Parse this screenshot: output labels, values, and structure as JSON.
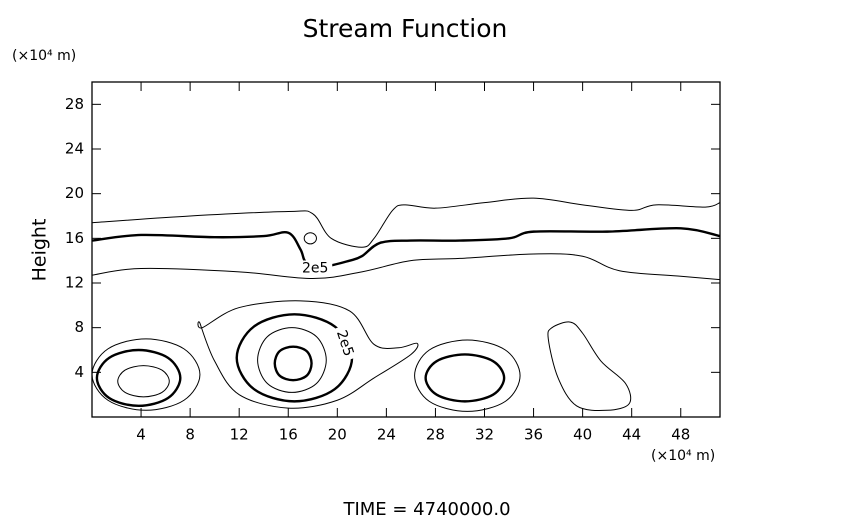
{
  "chart_data": {
    "type": "contour",
    "title": "Stream Function",
    "ylabel": "Height",
    "y_unit": "(×10⁴ m)",
    "x_unit": "(×10⁴ m)",
    "footer": "TIME = 4740000.0",
    "xlim": [
      0,
      51.2
    ],
    "ylim": [
      0,
      30
    ],
    "xticks": [
      4,
      8,
      12,
      16,
      20,
      24,
      28,
      32,
      36,
      40,
      44,
      48
    ],
    "yticks": [
      4,
      8,
      12,
      16,
      20,
      24,
      28
    ],
    "color": "#000000",
    "contours": [
      {
        "closed": false,
        "thick": false,
        "x": [
          0,
          8,
          16,
          18,
          19.5,
          22,
          23,
          24.5,
          25.5,
          28,
          32,
          36,
          40,
          44,
          46,
          50,
          51.2
        ],
        "y": [
          17.4,
          18,
          18.4,
          18.2,
          16,
          15.2,
          16,
          18.5,
          19,
          18.7,
          19.2,
          19.6,
          19,
          18.5,
          19,
          18.8,
          19.2
        ]
      },
      {
        "closed": false,
        "thick": true,
        "label": "2e5",
        "x": [
          0,
          4,
          10,
          14,
          16,
          17,
          17.5,
          19,
          21,
          22,
          23.5,
          26,
          30,
          34,
          36,
          42,
          48,
          51.2
        ],
        "y": [
          15.8,
          16.3,
          16.1,
          16.2,
          16.5,
          15,
          13.8,
          13.5,
          14,
          14.4,
          15.6,
          15.8,
          15.8,
          16,
          16.6,
          16.6,
          16.9,
          16.2
        ]
      },
      {
        "closed": false,
        "thick": false,
        "x": [
          0,
          4,
          12,
          18,
          22,
          26,
          30,
          36,
          40,
          43,
          48,
          51.2
        ],
        "y": [
          12.7,
          13.3,
          13,
          12.4,
          13,
          14,
          14.2,
          14.6,
          14.4,
          13.1,
          12.6,
          12.3
        ]
      },
      {
        "closed": true,
        "thick": false,
        "x": [
          18.3,
          18.15,
          17.8,
          17.45,
          17.3,
          17.45,
          17.8,
          18.15
        ],
        "y": [
          16,
          16.35,
          16.5,
          16.35,
          16,
          15.65,
          15.5,
          15.65
        ]
      },
      {
        "closed": true,
        "thick": false,
        "x": [
          8.8,
          7.5,
          4.4,
          1.3,
          0,
          1.3,
          4.4,
          7.5
        ],
        "y": [
          3.8,
          6.1,
          7.0,
          6.1,
          3.8,
          1.5,
          0.6,
          1.5
        ]
      },
      {
        "closed": true,
        "thick": true,
        "x": [
          7.2,
          6.2,
          3.8,
          1.4,
          0.4,
          1.4,
          3.8,
          6.2
        ],
        "y": [
          3.5,
          5.3,
          6.0,
          5.3,
          3.5,
          1.7,
          1.0,
          1.7
        ]
      },
      {
        "closed": true,
        "thick": false,
        "x": [
          6.3,
          5.7,
          4.2,
          2.7,
          2.1,
          2.7,
          4.2,
          5.7
        ],
        "y": [
          3.2,
          4.2,
          4.6,
          4.2,
          3.2,
          2.2,
          1.8,
          2.2
        ]
      },
      {
        "closed": true,
        "thick": false,
        "x": [
          9,
          12,
          17,
          21,
          23,
          25,
          26.5,
          26,
          23,
          20,
          16,
          12,
          10,
          8.8
        ],
        "y": [
          8,
          9.8,
          10.4,
          9.5,
          6.5,
          6.2,
          6.6,
          5.6,
          3.5,
          1.5,
          0.8,
          2,
          5,
          8.4
        ]
      },
      {
        "closed": true,
        "thick": true,
        "label": "2e5",
        "x": [
          21.2,
          19.8,
          16.5,
          13.2,
          11.8,
          13.2,
          16.5,
          19.8
        ],
        "y": [
          5.3,
          8.1,
          9.2,
          8.1,
          5.3,
          2.5,
          1.4,
          2.5
        ]
      },
      {
        "closed": true,
        "thick": false,
        "x": [
          19.1,
          18.3,
          16.3,
          14.3,
          13.5,
          14.3,
          16.3,
          18.3
        ],
        "y": [
          5.1,
          7.2,
          8.0,
          7.2,
          5.1,
          3.0,
          2.2,
          3.0
        ]
      },
      {
        "closed": true,
        "thick": true,
        "x": [
          17.9,
          17.5,
          16.4,
          15.3,
          14.9,
          15.3,
          16.4,
          17.5
        ],
        "y": [
          4.8,
          5.9,
          6.3,
          5.9,
          4.8,
          3.7,
          3.3,
          3.7
        ]
      },
      {
        "closed": true,
        "thick": false,
        "x": [
          34.9,
          33.7,
          30.6,
          27.5,
          26.3,
          27.5,
          30.6,
          33.7
        ],
        "y": [
          3.7,
          6.0,
          6.9,
          6.0,
          3.7,
          1.4,
          0.5,
          1.4
        ]
      },
      {
        "closed": true,
        "thick": true,
        "x": [
          33.6,
          32.7,
          30.4,
          28.1,
          27.2,
          28.1,
          30.4,
          32.7
        ],
        "y": [
          3.5,
          5.0,
          5.6,
          5.0,
          3.5,
          2.0,
          1.4,
          2.0
        ]
      },
      {
        "closed": true,
        "thick": false,
        "x": [
          37.5,
          39,
          40,
          41.5,
          43.5,
          43.8,
          42,
          39.5,
          38,
          37.2
        ],
        "y": [
          8,
          8.5,
          7.5,
          5,
          3,
          1.2,
          0.6,
          1,
          3.5,
          7
        ]
      }
    ]
  }
}
